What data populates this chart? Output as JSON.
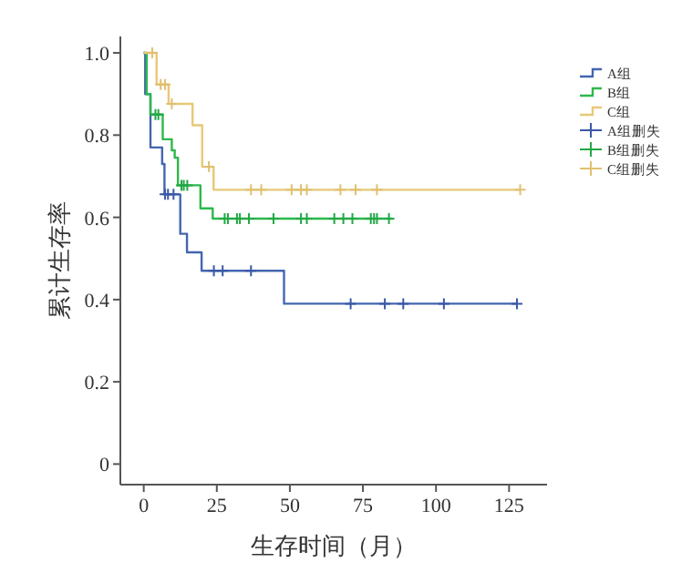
{
  "chart_data": {
    "type": "step",
    "xlabel": "生存时间（月）",
    "ylabel": "累计生存率",
    "xlim": [
      -8,
      138
    ],
    "ylim": [
      -0.05,
      1.04
    ],
    "xticks": [
      0,
      25,
      50,
      75,
      100,
      125
    ],
    "yticks": [
      0,
      {
        "value": 0.2,
        "label": "0.2"
      },
      {
        "value": 0.4,
        "label": "0.4"
      },
      {
        "value": 0.6,
        "label": "0.6"
      },
      {
        "value": 0.8,
        "label": "0.8"
      },
      {
        "value": 1,
        "label": "1.0"
      }
    ],
    "legend": "top right",
    "grid": false,
    "series": [
      {
        "name": "A组",
        "color": "#4466b0",
        "x": [
          0,
          0.5,
          2.3,
          6.3,
          7.1,
          12.5,
          14.8,
          19.8,
          48,
          127.7
        ],
        "values": [
          1.0,
          0.9,
          0.77,
          0.73,
          0.656,
          0.56,
          0.515,
          0.47,
          0.39,
          0.39
        ]
      },
      {
        "name": "B组",
        "color": "#2db84d",
        "x": [
          0,
          1,
          2.3,
          6.5,
          9.6,
          10.6,
          11.7,
          19.4,
          23.6,
          85
        ],
        "values": [
          1.0,
          0.9,
          0.85,
          0.79,
          0.763,
          0.745,
          0.678,
          0.622,
          0.597,
          0.597
        ]
      },
      {
        "name": "C组",
        "color": "#e8c878",
        "x": [
          0,
          4.4,
          8.5,
          16.7,
          20,
          23.9,
          128.8
        ],
        "values": [
          1.0,
          0.923,
          0.876,
          0.824,
          0.723,
          0.667,
          0.667
        ]
      },
      {
        "name": "A组删失",
        "type": "scatter",
        "marker": "cross",
        "color": "#3a58a8",
        "x": [
          7.3,
          8.3,
          10.2,
          24,
          27,
          36.7,
          70.8,
          82.5,
          88.8,
          102.7,
          127.7
        ],
        "values": [
          0.656,
          0.656,
          0.656,
          0.47,
          0.47,
          0.47,
          0.39,
          0.39,
          0.39,
          0.39,
          0.39
        ]
      },
      {
        "name": "B组删失",
        "type": "scatter",
        "marker": "cross",
        "color": "#22a844",
        "x": [
          4,
          5,
          12.9,
          13.7,
          14.9,
          27.7,
          28.8,
          31.9,
          32.9,
          36,
          44.4,
          53.8,
          55.8,
          65.2,
          68.3,
          71.4,
          77.7,
          78.8,
          79.8,
          83.9
        ],
        "values": [
          0.85,
          0.85,
          0.678,
          0.678,
          0.678,
          0.597,
          0.597,
          0.597,
          0.597,
          0.597,
          0.597,
          0.597,
          0.597,
          0.597,
          0.597,
          0.597,
          0.597,
          0.597,
          0.597,
          0.597
        ]
      },
      {
        "name": "C组删失",
        "type": "scatter",
        "marker": "cross",
        "color": "#e0c070",
        "x": [
          2.9,
          5.8,
          7.3,
          9.6,
          22.3,
          36.7,
          40.2,
          50.6,
          53.8,
          55.8,
          67.3,
          72.5,
          79.8,
          128.8
        ],
        "values": [
          1.0,
          0.923,
          0.923,
          0.876,
          0.723,
          0.667,
          0.667,
          0.667,
          0.667,
          0.667,
          0.667,
          0.667,
          0.667,
          0.667
        ]
      }
    ]
  }
}
